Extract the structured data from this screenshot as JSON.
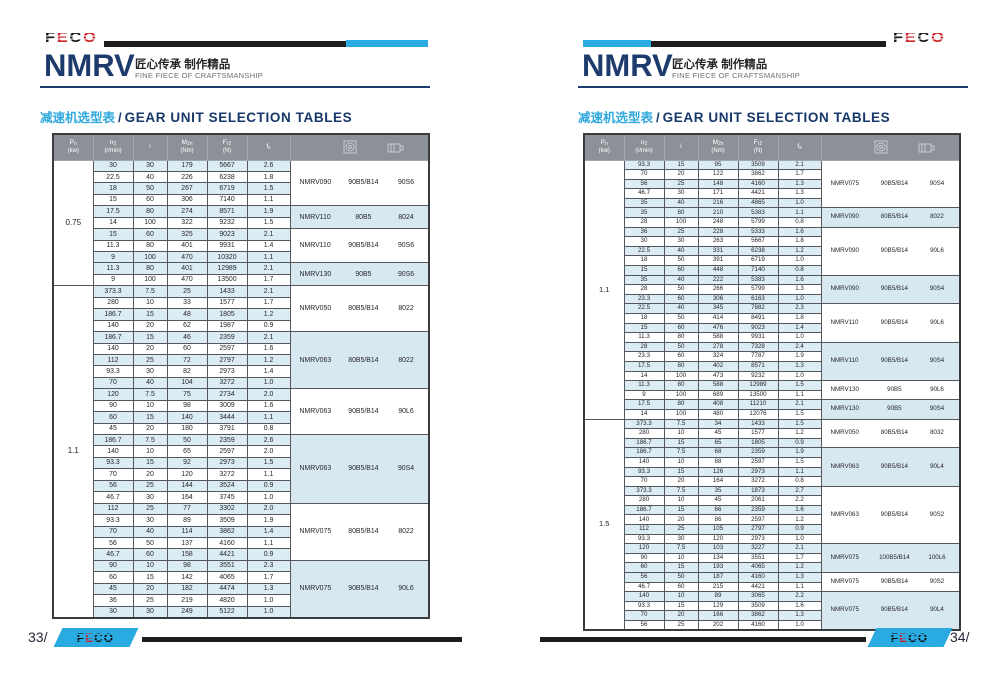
{
  "brand": {
    "logo_f": "F",
    "logo_e": "E",
    "logo_c": "C",
    "logo_o": "O",
    "series": "NMRV",
    "tagline_zh": "匠心传承 制作精品",
    "tagline_en": "FINE FIECE OF CRAFTSMANSHIP"
  },
  "section_title": {
    "zh": "减速机选型表",
    "divider": "/",
    "en": "GEAR UNIT SELECTION TABLES"
  },
  "columns": [
    {
      "main": "P",
      "sub": "n",
      "unit": "(kw)"
    },
    {
      "main": "n",
      "sub": "2",
      "unit": "(r/min)"
    },
    {
      "main": "i",
      "sub": "",
      "unit": ""
    },
    {
      "main": "M",
      "sub": "2n",
      "unit": "(Nm)"
    },
    {
      "main": "F",
      "sub": "r2",
      "unit": "(N)"
    },
    {
      "main": "f",
      "sub": "s",
      "unit": ""
    }
  ],
  "colors": {
    "cyan": "#29abe2",
    "navy": "#1e3b6d",
    "header_gray": "#8b9197",
    "row_blue": "#dcecf5",
    "group_blue": "#d8e8f1",
    "bar_black": "#1d1d1b",
    "logo_red": "#c9252b"
  },
  "pages": [
    {
      "page_no": "33/",
      "sections": [
        {
          "power": "0.75",
          "groups": [
            {
              "model": "NMRV090",
              "flange": "90B5/B14",
              "motor": "90S6",
              "rows": [
                [
                  "30",
                  "30",
                  "179",
                  "5667",
                  "2.6"
                ],
                [
                  "22.5",
                  "40",
                  "226",
                  "6238",
                  "1.8"
                ],
                [
                  "18",
                  "50",
                  "267",
                  "6719",
                  "1.5"
                ],
                [
                  "15",
                  "60",
                  "306",
                  "7140",
                  "1.1"
                ]
              ]
            },
            {
              "model": "NMRV110",
              "flange": "80B5",
              "motor": "8024",
              "rows": [
                [
                  "17.5",
                  "80",
                  "274",
                  "8571",
                  "1.9"
                ],
                [
                  "14",
                  "100",
                  "322",
                  "9232",
                  "1.5"
                ]
              ]
            },
            {
              "model": "NMRV110",
              "flange": "90B5/B14",
              "motor": "90S6",
              "rows": [
                [
                  "15",
                  "60",
                  "325",
                  "9023",
                  "2.1"
                ],
                [
                  "11.3",
                  "80",
                  "401",
                  "9931",
                  "1.4"
                ],
                [
                  "9",
                  "100",
                  "470",
                  "10320",
                  "1.1"
                ]
              ]
            },
            {
              "model": "NMRV130",
              "flange": "90B5",
              "motor": "90S6",
              "rows": [
                [
                  "11.3",
                  "80",
                  "401",
                  "12989",
                  "2.1"
                ],
                [
                  "9",
                  "100",
                  "470",
                  "13500",
                  "1.7"
                ]
              ]
            }
          ]
        },
        {
          "power": "1.1",
          "groups": [
            {
              "model": "NMRV050",
              "flange": "80B5/B14",
              "motor": "8022",
              "rows": [
                [
                  "373.3",
                  "7.5",
                  "25",
                  "1433",
                  "2.1"
                ],
                [
                  "280",
                  "10",
                  "33",
                  "1577",
                  "1.7"
                ],
                [
                  "186.7",
                  "15",
                  "48",
                  "1805",
                  "1.2"
                ],
                [
                  "140",
                  "20",
                  "62",
                  "1987",
                  "0.9"
                ]
              ]
            },
            {
              "model": "NMRV063",
              "flange": "80B5/B14",
              "motor": "8022",
              "rows": [
                [
                  "186.7",
                  "15",
                  "46",
                  "2359",
                  "2.1"
                ],
                [
                  "140",
                  "20",
                  "60",
                  "2597",
                  "1.6"
                ],
                [
                  "112",
                  "25",
                  "72",
                  "2797",
                  "1.2"
                ],
                [
                  "93.3",
                  "30",
                  "82",
                  "2973",
                  "1.4"
                ],
                [
                  "70",
                  "40",
                  "104",
                  "3272",
                  "1.0"
                ]
              ]
            },
            {
              "model": "NMRV063",
              "flange": "90B5/B14",
              "motor": "90L6",
              "rows": [
                [
                  "120",
                  "7.5",
                  "75",
                  "2734",
                  "2.0"
                ],
                [
                  "90",
                  "10",
                  "98",
                  "3009",
                  "1.6"
                ],
                [
                  "60",
                  "15",
                  "140",
                  "3444",
                  "1.1"
                ],
                [
                  "45",
                  "20",
                  "180",
                  "3791",
                  "0.8"
                ]
              ]
            },
            {
              "model": "NMRV063",
              "flange": "90B5/B14",
              "motor": "90S4",
              "rows": [
                [
                  "186.7",
                  "7.5",
                  "50",
                  "2359",
                  "2.6"
                ],
                [
                  "140",
                  "10",
                  "65",
                  "2597",
                  "2.0"
                ],
                [
                  "93.3",
                  "15",
                  "92",
                  "2973",
                  "1.5"
                ],
                [
                  "70",
                  "20",
                  "120",
                  "3272",
                  "1.1"
                ],
                [
                  "56",
                  "25",
                  "144",
                  "3524",
                  "0.9"
                ],
                [
                  "46.7",
                  "30",
                  "164",
                  "3745",
                  "1.0"
                ]
              ]
            },
            {
              "model": "NMRV075",
              "flange": "80B5/B14",
              "motor": "8022",
              "rows": [
                [
                  "112",
                  "25",
                  "77",
                  "3302",
                  "2.0"
                ],
                [
                  "93.3",
                  "30",
                  "89",
                  "3509",
                  "1.9"
                ],
                [
                  "70",
                  "40",
                  "114",
                  "3862",
                  "1.4"
                ],
                [
                  "56",
                  "50",
                  "137",
                  "4160",
                  "1.1"
                ],
                [
                  "46.7",
                  "60",
                  "158",
                  "4421",
                  "0.9"
                ]
              ]
            },
            {
              "model": "NMRV075",
              "flange": "90B5/B14",
              "motor": "90L6",
              "rows": [
                [
                  "90",
                  "10",
                  "98",
                  "3551",
                  "2.3"
                ],
                [
                  "60",
                  "15",
                  "142",
                  "4065",
                  "1.7"
                ],
                [
                  "45",
                  "20",
                  "182",
                  "4474",
                  "1.3"
                ],
                [
                  "36",
                  "25",
                  "219",
                  "4820",
                  "1.0"
                ],
                [
                  "30",
                  "30",
                  "249",
                  "5122",
                  "1.0"
                ]
              ]
            }
          ]
        }
      ]
    },
    {
      "page_no": "34/",
      "sections": [
        {
          "power": "1.1",
          "groups": [
            {
              "model": "NMRV075",
              "flange": "90B5/B14",
              "motor": "90S4",
              "rows": [
                [
                  "93.3",
                  "15",
                  "95",
                  "3509",
                  "2.1"
                ],
                [
                  "70",
                  "20",
                  "122",
                  "3862",
                  "1.7"
                ],
                [
                  "56",
                  "25",
                  "148",
                  "4160",
                  "1.3"
                ],
                [
                  "46.7",
                  "30",
                  "171",
                  "4421",
                  "1.3"
                ],
                [
                  "35",
                  "40",
                  "216",
                  "4865",
                  "1.0"
                ]
              ]
            },
            {
              "model": "NMRV090",
              "flange": "80B5/B14",
              "motor": "8022",
              "rows": [
                [
                  "35",
                  "80",
                  "210",
                  "5383",
                  "1.1"
                ],
                [
                  "28",
                  "100",
                  "248",
                  "5799",
                  "0.8"
                ]
              ]
            },
            {
              "model": "NMRV090",
              "flange": "90B5/B14",
              "motor": "90L6",
              "rows": [
                [
                  "36",
                  "25",
                  "228",
                  "5333",
                  "1.6"
                ],
                [
                  "30",
                  "30",
                  "263",
                  "5667",
                  "1.8"
                ],
                [
                  "22.5",
                  "40",
                  "331",
                  "6238",
                  "1.2"
                ],
                [
                  "18",
                  "50",
                  "391",
                  "6719",
                  "1.0"
                ],
                [
                  "15",
                  "60",
                  "448",
                  "7140",
                  "0.8"
                ]
              ]
            },
            {
              "model": "NMRV090",
              "flange": "90B5/B14",
              "motor": "90S4",
              "rows": [
                [
                  "35",
                  "40",
                  "222",
                  "5383",
                  "1.6"
                ],
                [
                  "28",
                  "50",
                  "266",
                  "5799",
                  "1.3"
                ],
                [
                  "23.3",
                  "60",
                  "306",
                  "6163",
                  "1.0"
                ]
              ]
            },
            {
              "model": "NMRV110",
              "flange": "90B5/B14",
              "motor": "90L6",
              "rows": [
                [
                  "22.5",
                  "40",
                  "345",
                  "7882",
                  "2.3"
                ],
                [
                  "18",
                  "50",
                  "414",
                  "8491",
                  "1.8"
                ],
                [
                  "15",
                  "60",
                  "476",
                  "9023",
                  "1.4"
                ],
                [
                  "11.3",
                  "80",
                  "588",
                  "9931",
                  "1.0"
                ]
              ]
            },
            {
              "model": "NMRV110",
              "flange": "90B5/B14",
              "motor": "90S4",
              "rows": [
                [
                  "28",
                  "50",
                  "278",
                  "7328",
                  "2.4"
                ],
                [
                  "23.3",
                  "60",
                  "324",
                  "7787",
                  "1.9"
                ],
                [
                  "17.5",
                  "80",
                  "402",
                  "8571",
                  "1.3"
                ],
                [
                  "14",
                  "100",
                  "473",
                  "9232",
                  "1.0"
                ]
              ]
            },
            {
              "model": "NMRV130",
              "flange": "90B5",
              "motor": "90L6",
              "rows": [
                [
                  "11.3",
                  "80",
                  "588",
                  "12989",
                  "1.5"
                ],
                [
                  "9",
                  "100",
                  "689",
                  "13500",
                  "1.1"
                ]
              ]
            },
            {
              "model": "NMRV130",
              "flange": "90B5",
              "motor": "90S4",
              "rows": [
                [
                  "17.5",
                  "80",
                  "408",
                  "11210",
                  "2.1"
                ],
                [
                  "14",
                  "100",
                  "480",
                  "12076",
                  "1.5"
                ]
              ]
            }
          ]
        },
        {
          "power": "1.5",
          "groups": [
            {
              "model": "NMRV050",
              "flange": "80B5/B14",
              "motor": "8032",
              "rows": [
                [
                  "373.3",
                  "7.5",
                  "34",
                  "1433",
                  "1.5"
                ],
                [
                  "280",
                  "10",
                  "45",
                  "1577",
                  "1.2"
                ],
                [
                  "186.7",
                  "15",
                  "65",
                  "1805",
                  "0.9"
                ]
              ]
            },
            {
              "model": "NMRV063",
              "flange": "90B5/B14",
              "motor": "90L4",
              "rows": [
                [
                  "186.7",
                  "7.5",
                  "68",
                  "2359",
                  "1.9"
                ],
                [
                  "140",
                  "10",
                  "88",
                  "2597",
                  "1.5"
                ],
                [
                  "93.3",
                  "15",
                  "126",
                  "2973",
                  "1.1"
                ],
                [
                  "70",
                  "20",
                  "164",
                  "3272",
                  "0.8"
                ]
              ]
            },
            {
              "model": "NMRV063",
              "flange": "90B5/B14",
              "motor": "90S2",
              "rows": [
                [
                  "373.3",
                  "7.5",
                  "35",
                  "1873",
                  "2.7"
                ],
                [
                  "280",
                  "10",
                  "45",
                  "2061",
                  "2.2"
                ],
                [
                  "186.7",
                  "15",
                  "66",
                  "2359",
                  "1.6"
                ],
                [
                  "140",
                  "20",
                  "86",
                  "2597",
                  "1.2"
                ],
                [
                  "112",
                  "25",
                  "105",
                  "2797",
                  "0.9"
                ],
                [
                  "93.3",
                  "30",
                  "120",
                  "2973",
                  "1.0"
                ]
              ]
            },
            {
              "model": "NMRV075",
              "flange": "100B5/B14",
              "motor": "100L6",
              "rows": [
                [
                  "120",
                  "7.5",
                  "103",
                  "3227",
                  "2.1"
                ],
                [
                  "90",
                  "10",
                  "134",
                  "3551",
                  "1.7"
                ],
                [
                  "60",
                  "15",
                  "193",
                  "4065",
                  "1.2"
                ]
              ]
            },
            {
              "model": "NMRV075",
              "flange": "90B5/B14",
              "motor": "90S2",
              "rows": [
                [
                  "56",
                  "50",
                  "187",
                  "4160",
                  "1.3"
                ],
                [
                  "46.7",
                  "60",
                  "215",
                  "4421",
                  "1.1"
                ]
              ]
            },
            {
              "model": "NMRV075",
              "flange": "90B5/B14",
              "motor": "90L4",
              "rows": [
                [
                  "140",
                  "10",
                  "89",
                  "3065",
                  "2.2"
                ],
                [
                  "93.3",
                  "15",
                  "129",
                  "3509",
                  "1.6"
                ],
                [
                  "70",
                  "20",
                  "166",
                  "3862",
                  "1.3"
                ],
                [
                  "56",
                  "25",
                  "202",
                  "4160",
                  "1.0"
                ]
              ]
            }
          ]
        }
      ]
    }
  ]
}
